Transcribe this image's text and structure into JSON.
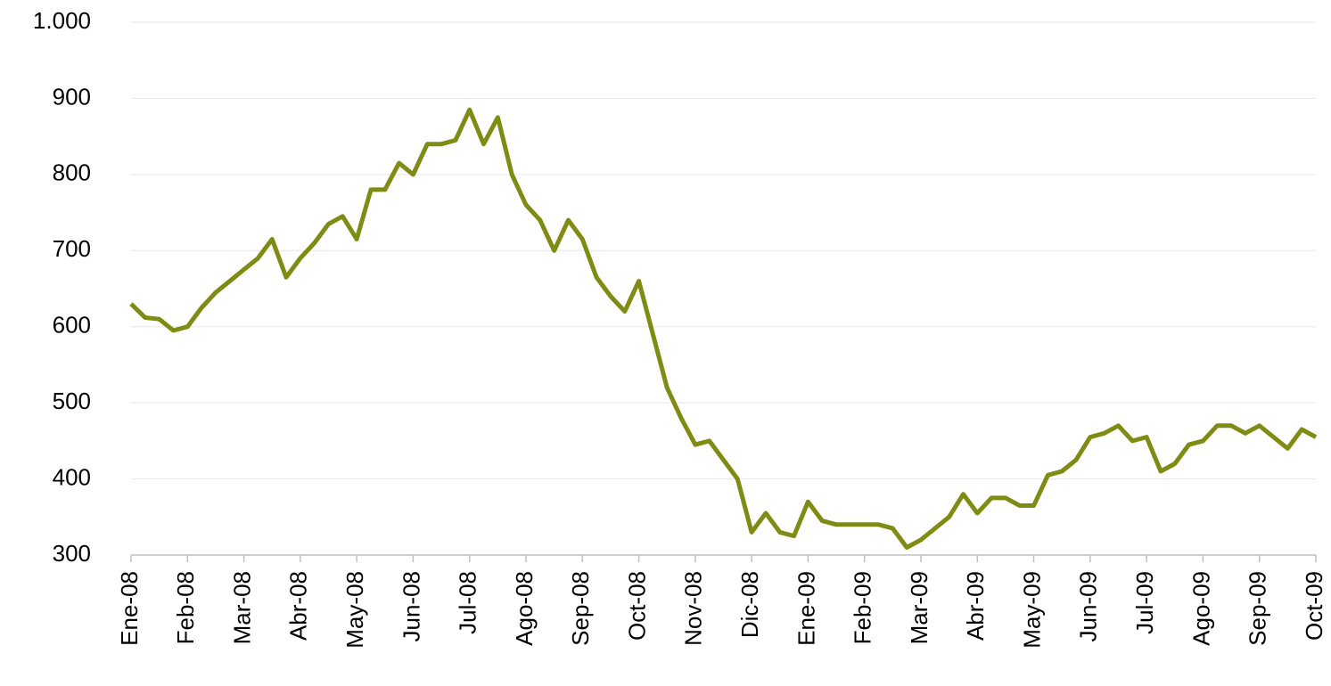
{
  "chart_data": {
    "type": "line",
    "categories": [
      "Ene-08",
      null,
      null,
      null,
      "Feb-08",
      null,
      null,
      null,
      "Mar-08",
      null,
      null,
      null,
      "Abr-08",
      null,
      null,
      null,
      "May-08",
      null,
      null,
      null,
      "Jun-08",
      null,
      null,
      null,
      "Jul-08",
      null,
      null,
      null,
      "Ago-08",
      null,
      null,
      null,
      "Sep-08",
      null,
      null,
      null,
      "Oct-08",
      null,
      null,
      null,
      "Nov-08",
      null,
      null,
      null,
      "Dic-08",
      null,
      null,
      null,
      "Ene-09",
      null,
      null,
      null,
      "Feb-09",
      null,
      null,
      null,
      "Mar-09",
      null,
      null,
      null,
      "Abr-09",
      null,
      null,
      null,
      "May-09",
      null,
      null,
      null,
      "Jun-09",
      null,
      null,
      null,
      "Jul-09",
      null,
      null,
      null,
      "Ago-09",
      null,
      null,
      null,
      "Sep-09",
      null,
      null,
      null,
      "Oct-09"
    ],
    "series": [
      {
        "name": null,
        "color": "#7f8c13",
        "values": [
          630,
          612,
          610,
          595,
          600,
          625,
          645,
          660,
          675,
          690,
          715,
          665,
          690,
          710,
          735,
          745,
          715,
          780,
          780,
          815,
          800,
          840,
          840,
          845,
          885,
          840,
          875,
          800,
          760,
          740,
          700,
          740,
          715,
          665,
          640,
          620,
          660,
          590,
          520,
          480,
          445,
          450,
          425,
          400,
          330,
          355,
          330,
          325,
          370,
          345,
          340,
          340,
          340,
          340,
          335,
          310,
          320,
          335,
          350,
          380,
          355,
          375,
          375,
          365,
          365,
          405,
          410,
          425,
          455,
          460,
          470,
          450,
          455,
          410,
          420,
          445,
          450,
          470,
          470,
          460,
          470,
          455,
          440,
          465,
          455
        ]
      }
    ],
    "ylim": [
      300,
      1000
    ],
    "yticks": [
      300,
      400,
      500,
      600,
      700,
      800,
      900,
      {
        "value": 1000,
        "label": "1.000"
      }
    ],
    "grid": true
  }
}
